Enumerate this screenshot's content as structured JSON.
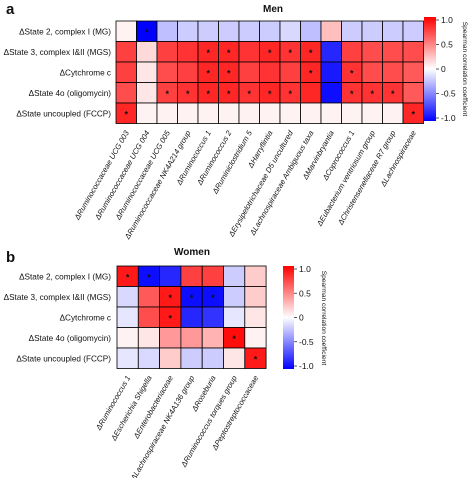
{
  "panels": [
    {
      "letter": "a",
      "title": "Men",
      "rows": [
        "ΔState 2, complex I (MG)",
        "ΔState 3, complex I&II (MGS)",
        "ΔCytchrome c",
        "ΔState 4o (oligomycin)",
        "ΔState uncoupled (FCCP)"
      ],
      "columns": [
        "ΔRuminococcaceae UCG 003",
        "ΔRuminococcaceae UCG 004",
        "ΔRuminococcaceae UCG 005",
        "ΔRuminococcaceae NK4A214 group",
        "ΔRuminococcus 1",
        "ΔRuminococcus 2",
        "ΔRuminiclostridium 5",
        "ΔHarryflintia",
        "ΔErysipelotrichaceae D5 uncultured",
        "ΔLachnospiraceae Ambiguous taxa",
        "ΔMarvinbryantia",
        "ΔCoprococcus 1",
        "ΔEubacterium ventriosum group",
        "ΔChristensenellaceae R7 group",
        "ΔLachnospiraceae"
      ],
      "colorbar": {
        "title": "Spearman correlation coefficient",
        "ticks": [
          "1.0",
          "0.5",
          "0",
          "-0.5",
          "-1.0"
        ]
      }
    },
    {
      "letter": "b",
      "title": "Women",
      "rows": [
        "ΔState 2, complex I (MG)",
        "ΔState 3, complex I&II (MGS)",
        "ΔCytchrome c",
        "ΔState 4o (oligomycin)",
        "ΔState uncoupled (FCCP)"
      ],
      "columns": [
        "ΔRuminococcus 1",
        "ΔEscherichia Shigella",
        "ΔEnterobacteriaceae",
        "ΔLachnospiraceae NK4A136 group",
        "ΔRoseburia",
        "ΔRuminococcus torques group",
        "ΔPeptostreptococcaceae"
      ],
      "colorbar": {
        "title": "Spearman correlation coefficient",
        "ticks": [
          "1.0",
          "0.5",
          "0",
          "-0.5",
          "-1.0"
        ]
      }
    }
  ],
  "chart_data": [
    {
      "type": "heatmap",
      "title": "Men",
      "vrange": [
        -1,
        1
      ],
      "colormap": [
        "#0000ff",
        "#ffffff",
        "#ff0000"
      ],
      "values": [
        [
          0.05,
          -1.0,
          -0.25,
          -0.2,
          -0.2,
          -0.2,
          -0.2,
          -0.2,
          -0.15,
          -0.25,
          0.25,
          -0.2,
          -0.2,
          -0.2,
          -0.2
        ],
        [
          0.75,
          0.15,
          0.75,
          0.8,
          0.85,
          0.85,
          0.8,
          0.85,
          0.8,
          0.85,
          -0.85,
          0.75,
          0.7,
          0.7,
          0.7
        ],
        [
          0.75,
          0.1,
          0.7,
          0.75,
          0.85,
          0.85,
          0.75,
          0.8,
          0.75,
          0.85,
          -0.9,
          0.8,
          0.7,
          0.7,
          0.65
        ],
        [
          0.7,
          0.1,
          0.75,
          0.8,
          0.85,
          0.85,
          0.8,
          0.85,
          0.8,
          0.85,
          -0.95,
          0.8,
          0.8,
          0.8,
          0.65
        ],
        [
          0.85,
          0.05,
          0.05,
          0.05,
          0.05,
          0.05,
          0.05,
          0.05,
          0.05,
          0.05,
          0.05,
          0.05,
          0.05,
          0.05,
          0.85
        ]
      ],
      "significant": [
        [
          0,
          1
        ],
        [
          1,
          4
        ],
        [
          1,
          5
        ],
        [
          1,
          7
        ],
        [
          1,
          8
        ],
        [
          1,
          9
        ],
        [
          2,
          4
        ],
        [
          2,
          5
        ],
        [
          2,
          9
        ],
        [
          2,
          11
        ],
        [
          3,
          2
        ],
        [
          3,
          3
        ],
        [
          3,
          4
        ],
        [
          3,
          5
        ],
        [
          3,
          6
        ],
        [
          3,
          7
        ],
        [
          3,
          8
        ],
        [
          3,
          11
        ],
        [
          3,
          12
        ],
        [
          3,
          13
        ],
        [
          4,
          0
        ],
        [
          4,
          14
        ]
      ]
    },
    {
      "type": "heatmap",
      "title": "Women",
      "vrange": [
        -1,
        1
      ],
      "colormap": [
        "#0000ff",
        "#ffffff",
        "#ff0000"
      ],
      "values": [
        [
          0.9,
          -0.95,
          -0.85,
          0.75,
          0.75,
          -0.2,
          0.2
        ],
        [
          -0.15,
          0.65,
          0.9,
          -0.95,
          -0.95,
          -0.2,
          0.2
        ],
        [
          -0.1,
          0.7,
          0.9,
          -0.85,
          -0.8,
          -0.1,
          0.1
        ],
        [
          0.05,
          0.1,
          0.4,
          0.4,
          0.3,
          0.95,
          0.05
        ],
        [
          -0.1,
          -0.15,
          0.2,
          -0.2,
          -0.2,
          0.1,
          0.9
        ]
      ],
      "significant": [
        [
          0,
          0
        ],
        [
          0,
          1
        ],
        [
          1,
          2
        ],
        [
          1,
          3
        ],
        [
          1,
          4
        ],
        [
          2,
          2
        ],
        [
          3,
          5
        ],
        [
          4,
          6
        ]
      ]
    }
  ]
}
